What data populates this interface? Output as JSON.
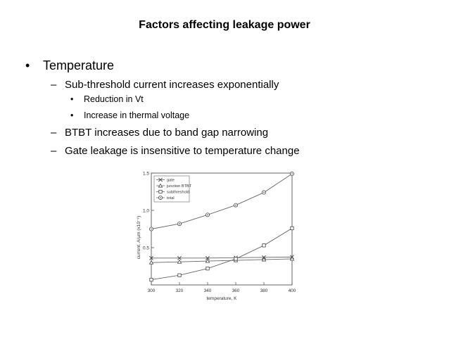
{
  "slide": {
    "title": "Factors affecting leakage power",
    "bullets": [
      {
        "text": "Temperature",
        "sub": [
          {
            "text": "Sub-threshold current increases exponentially",
            "sub": [
              "Reduction in Vt",
              "Increase in thermal voltage"
            ]
          },
          {
            "text": "BTBT increases due to band gap narrowing"
          },
          {
            "text": "Gate leakage is insensitive to temperature change"
          }
        ]
      }
    ],
    "bullet_glyph": "•",
    "dash_glyph": "–"
  },
  "chart_data": {
    "type": "line",
    "title": "",
    "xlabel": "temperature, K",
    "ylabel": "current, A/µm (x10⁻⁶)",
    "xlim": [
      300,
      400
    ],
    "ylim": [
      0,
      1.5
    ],
    "xticks": [
      300,
      320,
      340,
      360,
      380,
      400
    ],
    "yticks": [
      0.5,
      1.0,
      1.5
    ],
    "ytick_labels": [
      "0.5",
      "1.0",
      "1.5"
    ],
    "grid": false,
    "legend_position": "top-left",
    "x": [
      300,
      320,
      340,
      360,
      380,
      400
    ],
    "series": [
      {
        "name": "gate",
        "marker": "x",
        "values": [
          0.36,
          0.36,
          0.36,
          0.365,
          0.37,
          0.375
        ]
      },
      {
        "name": "junction BTBT",
        "marker": "triangle",
        "values": [
          0.3,
          0.31,
          0.32,
          0.33,
          0.34,
          0.35
        ]
      },
      {
        "name": "subthreshold",
        "marker": "square",
        "values": [
          0.07,
          0.13,
          0.22,
          0.35,
          0.53,
          0.76
        ]
      },
      {
        "name": "total",
        "marker": "circle",
        "values": [
          0.75,
          0.82,
          0.94,
          1.07,
          1.24,
          1.49
        ]
      }
    ]
  }
}
